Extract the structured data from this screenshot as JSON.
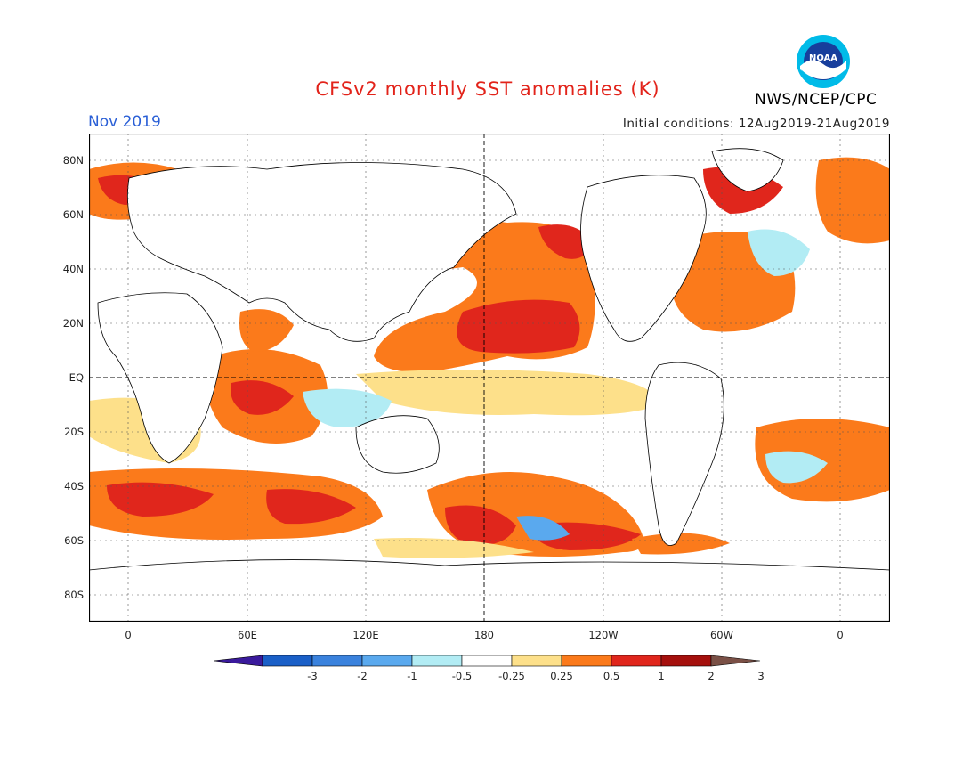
{
  "header": {
    "title": "CFSv2 monthly SST anomalies (K)",
    "month": "Nov 2019",
    "initial_conditions": "Initial conditions: 12Aug2019-21Aug2019",
    "agency": "NWS/NCEP/CPC",
    "logo_text": "NOAA"
  },
  "axes": {
    "lat_labels": [
      "80N",
      "60N",
      "40N",
      "20N",
      "EQ",
      "20S",
      "40S",
      "60S",
      "80S"
    ],
    "lon_labels": [
      "0",
      "60E",
      "120E",
      "180",
      "120W",
      "60W",
      "0"
    ]
  },
  "colorbar": {
    "labels": [
      "-3",
      "-2",
      "-1",
      "-0.5",
      "-0.25",
      "0.25",
      "0.5",
      "1",
      "2",
      "3"
    ],
    "colors": [
      "#3a1a9c",
      "#1a5fc7",
      "#3a82dd",
      "#5aa9ee",
      "#b2ecf4",
      "#ffffff",
      "#fde08a",
      "#fb7a1b",
      "#e0261c",
      "#a5100d",
      "#7a5046"
    ]
  },
  "colors": {
    "title": "#e2231a",
    "month": "#2a5fd6",
    "ocean_neutral": "#ffffff"
  }
}
